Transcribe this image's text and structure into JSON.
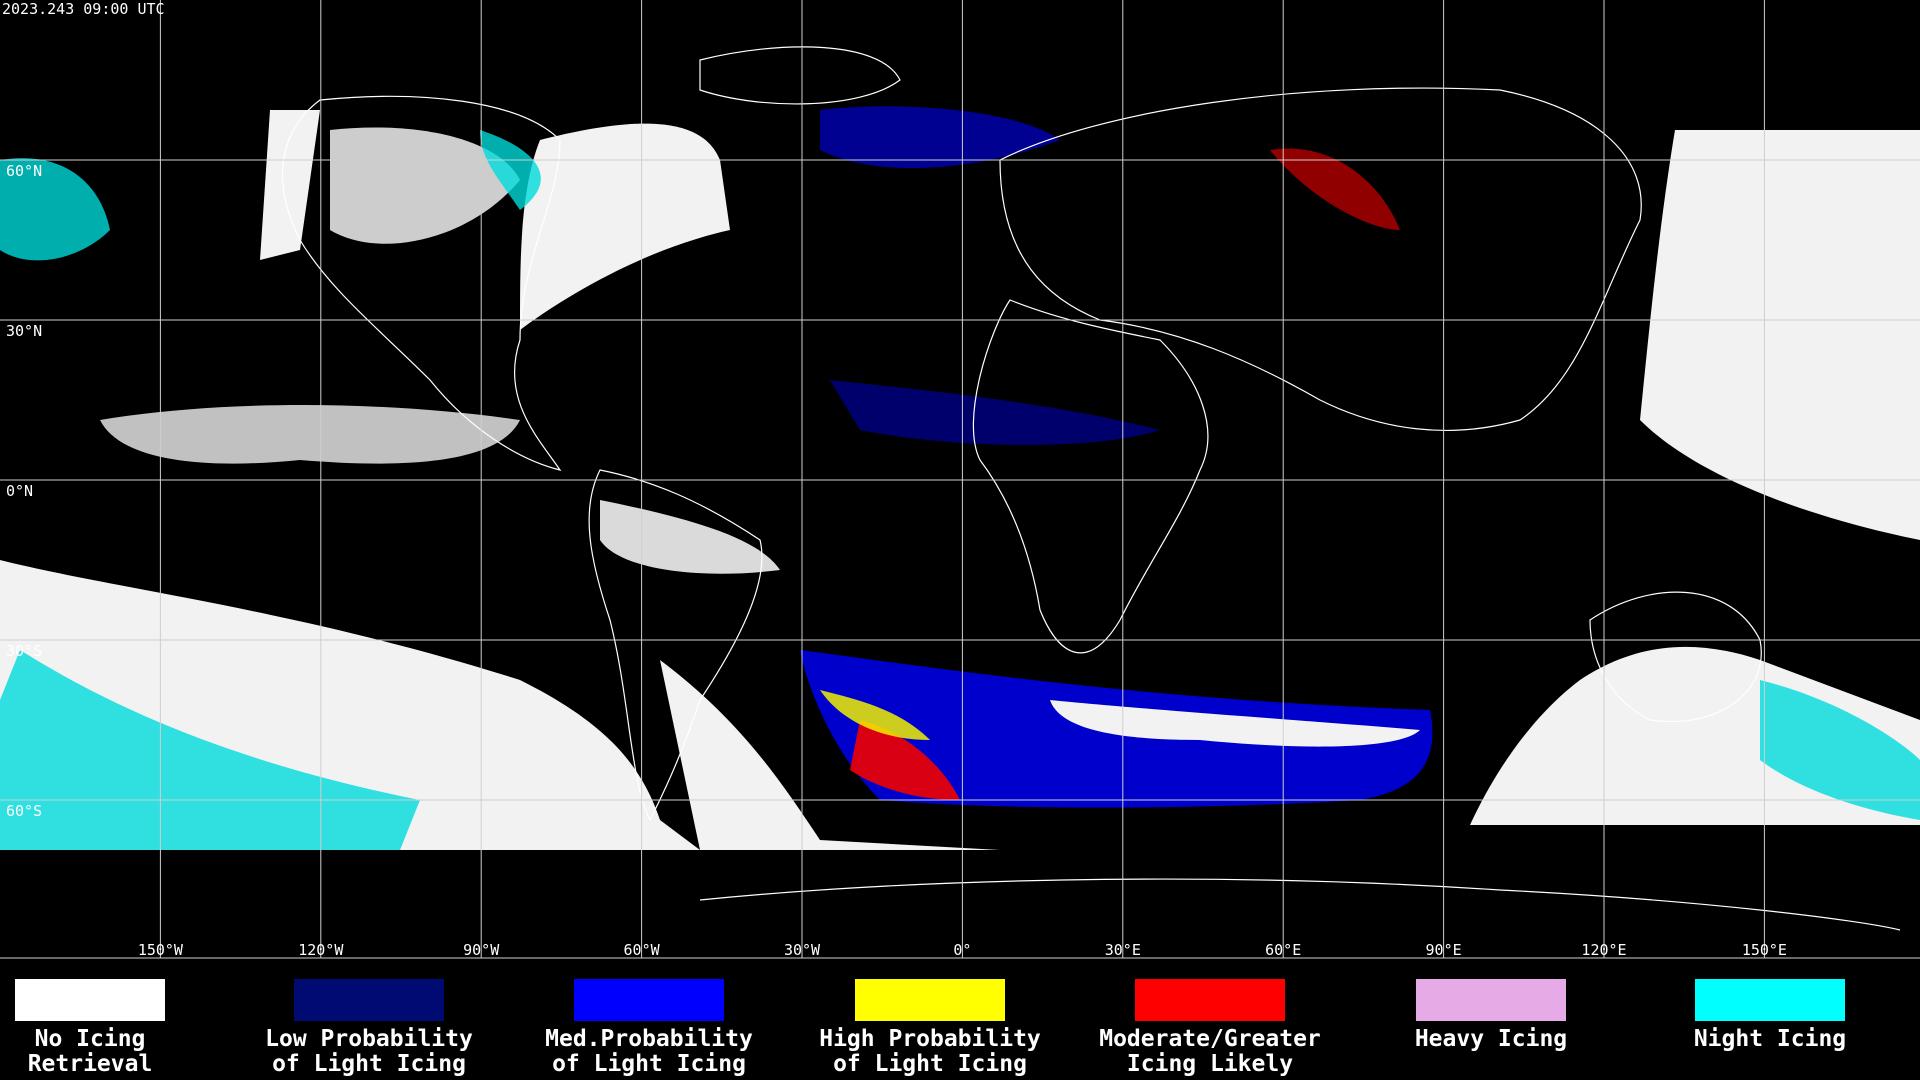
{
  "header": {
    "timestamp": "2023.243 09:00 UTC"
  },
  "map": {
    "lon_labels": [
      "150°W",
      "120°W",
      "90°W",
      "60°W",
      "30°W",
      "0°",
      "30°E",
      "60°E",
      "90°E",
      "120°E",
      "150°E"
    ],
    "lat_labels": [
      "60°N",
      "30°N",
      "0°N",
      "30°S",
      "60°S"
    ]
  },
  "legend": {
    "items": [
      {
        "lines": [
          "No Icing",
          "Retrieval"
        ],
        "color": "#ffffff"
      },
      {
        "lines": [
          "Low Probability",
          "of Light Icing"
        ],
        "color": "#000a73"
      },
      {
        "lines": [
          "Med.Probability",
          "of Light Icing"
        ],
        "color": "#0000ff"
      },
      {
        "lines": [
          "High Probability",
          "of Light Icing"
        ],
        "color": "#ffff00"
      },
      {
        "lines": [
          "Moderate/Greater",
          "Icing Likely"
        ],
        "color": "#ff0000"
      },
      {
        "lines": [
          "Heavy Icing"
        ],
        "color": "#e6aae6"
      },
      {
        "lines": [
          "Night Icing"
        ],
        "color": "#00ffff"
      }
    ]
  }
}
